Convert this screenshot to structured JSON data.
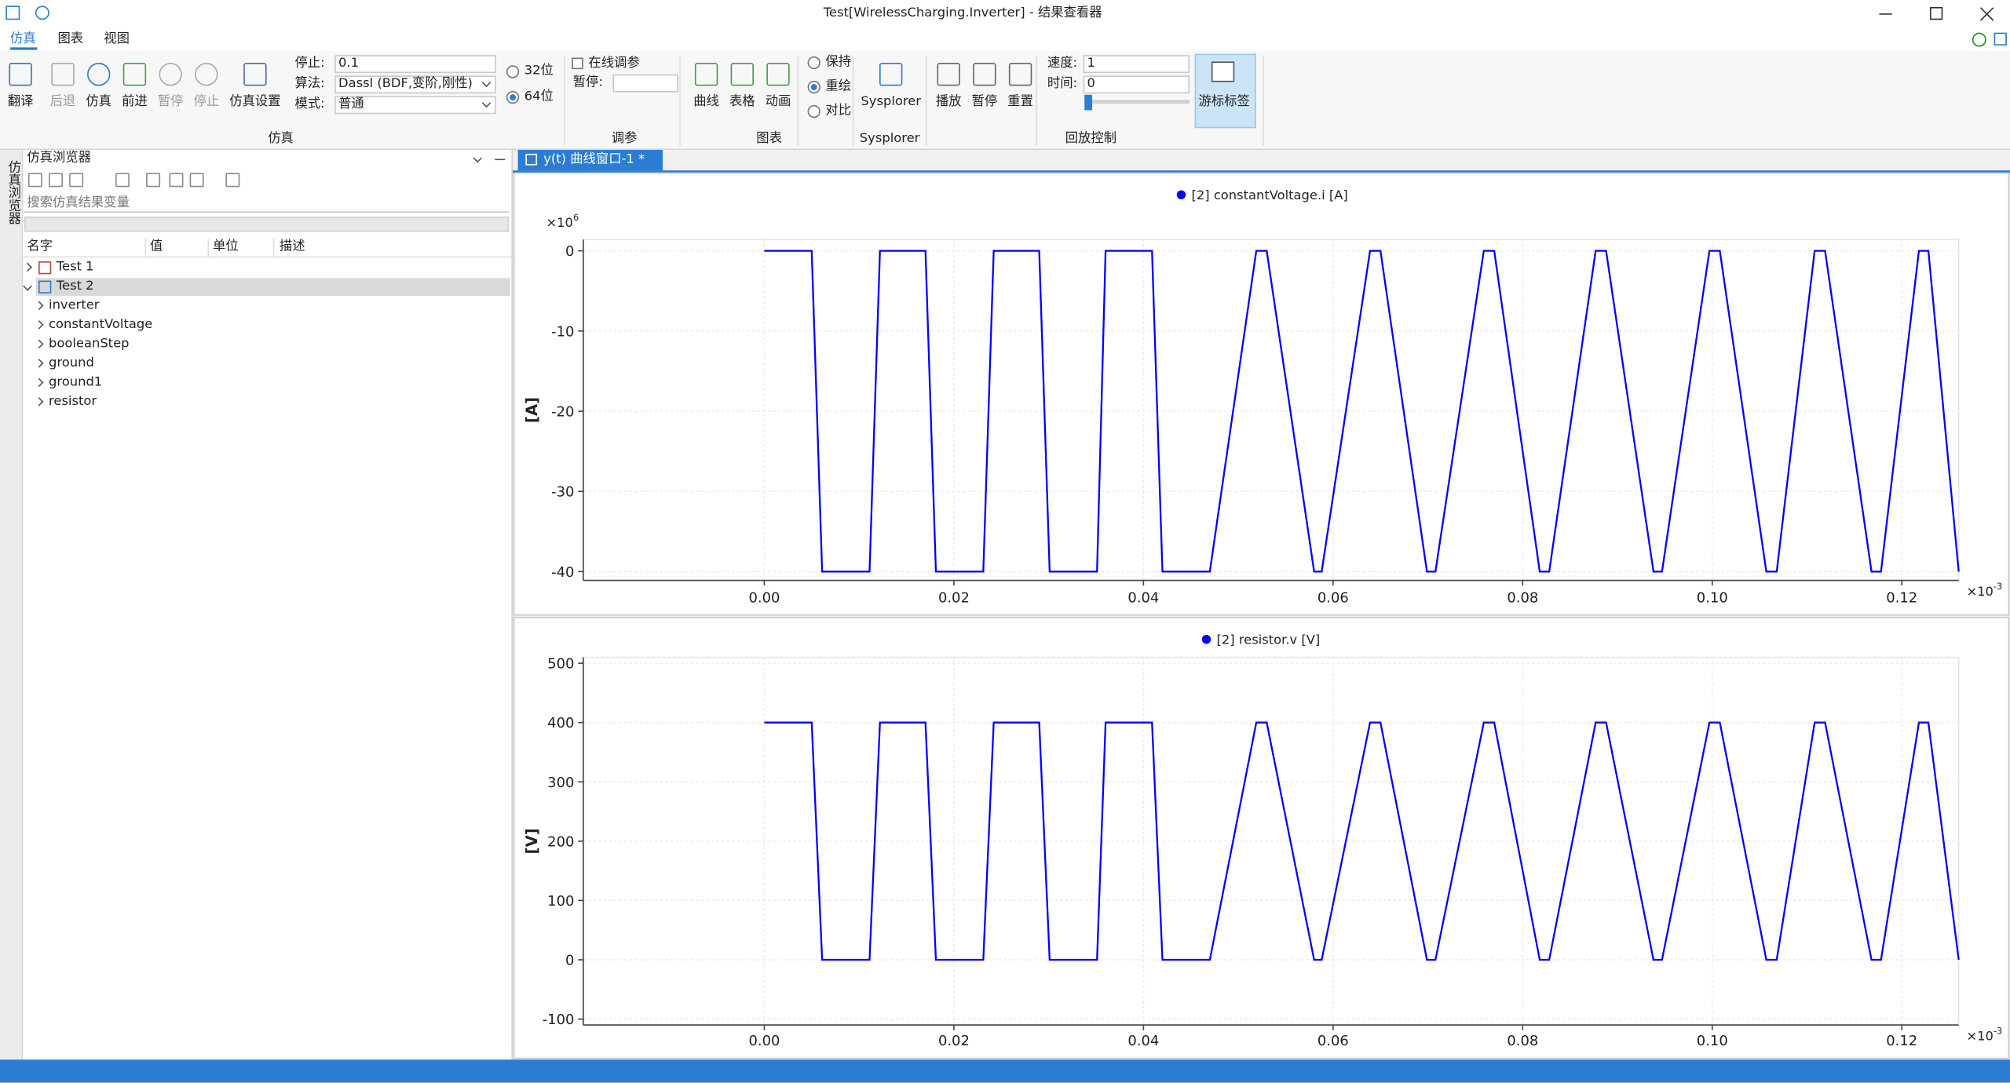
{
  "window": {
    "title": "Test[WirelessCharging.Inverter] - 结果查看器"
  },
  "menu": [
    "仿真",
    "图表",
    "视图"
  ],
  "toolbar": {
    "sim": {
      "buttons": [
        "翻译",
        "后退",
        "仿真",
        "前进",
        "暂停",
        "停止",
        "仿真设置"
      ],
      "fields": [
        {
          "label": "停止:",
          "value": "0.1"
        },
        {
          "label": "算法:",
          "value": "Dassl (BDF,变阶,刚性)"
        },
        {
          "label": "模式:",
          "value": "普通"
        }
      ],
      "options": [
        "32位",
        "64位"
      ],
      "group": "仿真"
    },
    "tune": {
      "checkbox": "在线调参",
      "field": {
        "label": "暂停:"
      },
      "group": "调参"
    },
    "plot": {
      "buttons": [
        "曲线",
        "表格",
        "动画"
      ],
      "options": [
        "保持",
        "重绘",
        "对比"
      ],
      "group": "图表"
    },
    "sysplorer": {
      "button": "Sysplorer",
      "group": "Sysplorer"
    },
    "playback": {
      "buttons": [
        "播放",
        "暂停",
        "重置"
      ],
      "fields": [
        {
          "label": "速度:",
          "value": "1"
        },
        {
          "label": "时间:",
          "value": "0"
        }
      ],
      "cursor_button": "游标标签",
      "group": "回放控制"
    }
  },
  "browser": {
    "title": "仿真浏览器",
    "side_tab": "仿真浏览器",
    "search_placeholder": "搜索仿真结果变量",
    "columns": [
      "名字",
      "值",
      "单位",
      "描述"
    ],
    "tree": [
      {
        "label": "Test 1"
      },
      {
        "label": "Test 2",
        "children": [
          "inverter",
          "constantVoltage",
          "booleanStep",
          "ground",
          "ground1",
          "resistor"
        ]
      }
    ]
  },
  "plot_tab": "y(t) 曲线窗口-1 *",
  "chart_data": [
    {
      "type": "line",
      "ylabel": "[A]",
      "y_multiplier": {
        "base": "×10",
        "exponent": "6"
      },
      "x_multiplier": {
        "base": "×10",
        "exponent": "-3"
      },
      "x": [
        0,
        0.005,
        0.0061,
        0.0111,
        0.0122,
        0.017,
        0.0181,
        0.0231,
        0.0242,
        0.029,
        0.0301,
        0.0351,
        0.036,
        0.0409,
        0.042,
        0.047,
        0.0519,
        0.053,
        0.058,
        0.0588,
        0.0639,
        0.065,
        0.0699,
        0.0708,
        0.0759,
        0.077,
        0.0818,
        0.0828,
        0.0877,
        0.0888,
        0.0938,
        0.0947,
        0.0997,
        0.1008,
        0.1057,
        0.1068,
        0.1108,
        0.1119,
        0.1168,
        0.1178,
        0.1218,
        0.1228,
        0.126
      ],
      "series": [
        {
          "name": "[2] constantVoltage.i [A]",
          "color": "#0000ff",
          "values": [
            0,
            0,
            -40,
            -40,
            0,
            0,
            -40,
            -40,
            0,
            0,
            -40,
            -40,
            0,
            0,
            -40,
            -40,
            0,
            0,
            -40,
            -40,
            0,
            0,
            -40,
            -40,
            0,
            0,
            -40,
            -40,
            0,
            0,
            -40,
            -40,
            0,
            0,
            -40,
            -40,
            0,
            0,
            -40,
            -40,
            0,
            0,
            -40
          ]
        }
      ],
      "xlim": [
        -0.0191,
        0.126
      ],
      "ylim": [
        -41.1,
        1.4
      ],
      "xticks": [
        {
          "value": 0,
          "label": "0.00"
        },
        {
          "value": 0.02,
          "label": "0.02"
        },
        {
          "value": 0.04,
          "label": "0.04"
        },
        {
          "value": 0.06,
          "label": "0.06"
        },
        {
          "value": 0.08,
          "label": "0.08"
        },
        {
          "value": 0.1,
          "label": "0.10"
        },
        {
          "value": 0.12,
          "label": "0.12"
        }
      ],
      "yticks": [
        0,
        -10,
        -20,
        -30,
        -40
      ],
      "grid": true
    },
    {
      "type": "line",
      "ylabel": "[V]",
      "x_multiplier": {
        "base": "×10",
        "exponent": "-3"
      },
      "x": [
        0,
        0.005,
        0.0061,
        0.0111,
        0.0122,
        0.017,
        0.0181,
        0.0231,
        0.0242,
        0.029,
        0.0301,
        0.0351,
        0.036,
        0.0409,
        0.042,
        0.047,
        0.0519,
        0.053,
        0.058,
        0.0588,
        0.0639,
        0.065,
        0.0699,
        0.0708,
        0.0759,
        0.077,
        0.0818,
        0.0828,
        0.0877,
        0.0888,
        0.0938,
        0.0947,
        0.0997,
        0.1008,
        0.1057,
        0.1068,
        0.1108,
        0.1119,
        0.1168,
        0.1178,
        0.1218,
        0.1228,
        0.126
      ],
      "series": [
        {
          "name": "[2] resistor.v [V]",
          "color": "#0000ff",
          "values": [
            400,
            400,
            0,
            0,
            400,
            400,
            0,
            0,
            400,
            400,
            0,
            0,
            400,
            400,
            0,
            0,
            400,
            400,
            0,
            0,
            400,
            400,
            0,
            0,
            400,
            400,
            0,
            0,
            400,
            400,
            0,
            0,
            400,
            400,
            0,
            0,
            400,
            400,
            0,
            0,
            400,
            400,
            0
          ]
        }
      ],
      "xlim": [
        -0.0191,
        0.126
      ],
      "ylim": [
        -110,
        510
      ],
      "xticks": [
        {
          "value": 0,
          "label": "0.00"
        },
        {
          "value": 0.02,
          "label": "0.02"
        },
        {
          "value": 0.04,
          "label": "0.04"
        },
        {
          "value": 0.06,
          "label": "0.06"
        },
        {
          "value": 0.08,
          "label": "0.08"
        },
        {
          "value": 0.1,
          "label": "0.10"
        },
        {
          "value": 0.12,
          "label": "0.12"
        }
      ],
      "yticks": [
        -100,
        0,
        100,
        200,
        300,
        400,
        500
      ],
      "grid": true
    }
  ]
}
